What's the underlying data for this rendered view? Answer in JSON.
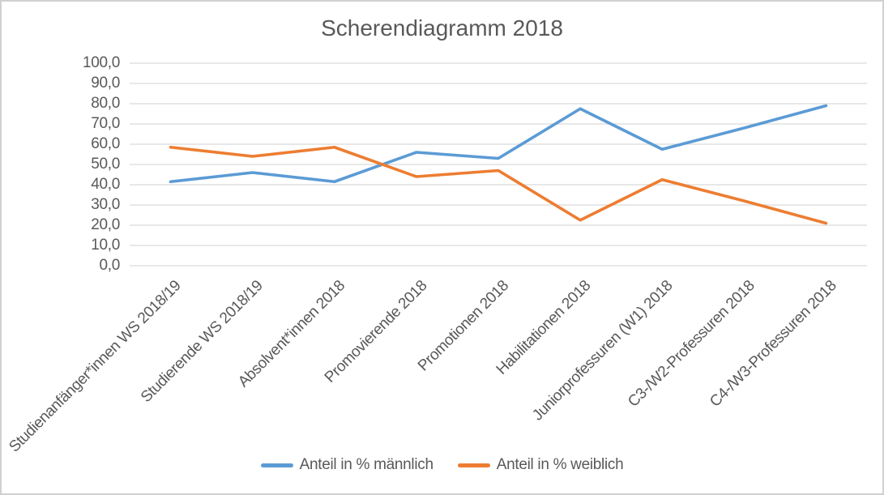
{
  "chart_data": {
    "type": "line",
    "title": "Scherendiagramm 2018",
    "categories": [
      "Studienanfänger*innen WS 2018/19",
      "Studierende WS 2018/19",
      "Absolvent*innen 2018",
      "Promovierende 2018",
      "Promotionen 2018",
      "Habilitationen 2018",
      "Juniorprofessuren (W1) 2018",
      "C3-/W2-Professuren 2018",
      "C4-/W3-Professuren 2018"
    ],
    "series": [
      {
        "name": "Anteil in % männlich",
        "color": "#5B9BD5",
        "values": [
          41.5,
          46.0,
          41.5,
          56.0,
          53.0,
          77.5,
          57.5,
          68.0,
          79.0
        ]
      },
      {
        "name": "Anteil in % weiblich",
        "color": "#ED7D31",
        "values": [
          58.5,
          54.0,
          58.5,
          44.0,
          47.0,
          22.5,
          42.5,
          32.0,
          21.0
        ]
      }
    ],
    "y_axis": {
      "min": 0,
      "max": 100,
      "step": 10,
      "tick_labels": [
        "0,0",
        "10,0",
        "20,0",
        "30,0",
        "40,0",
        "50,0",
        "60,0",
        "70,0",
        "80,0",
        "90,0",
        "100,0"
      ]
    },
    "x_axis_label": "",
    "y_axis_label": "",
    "grid": true,
    "legend_position": "bottom"
  }
}
